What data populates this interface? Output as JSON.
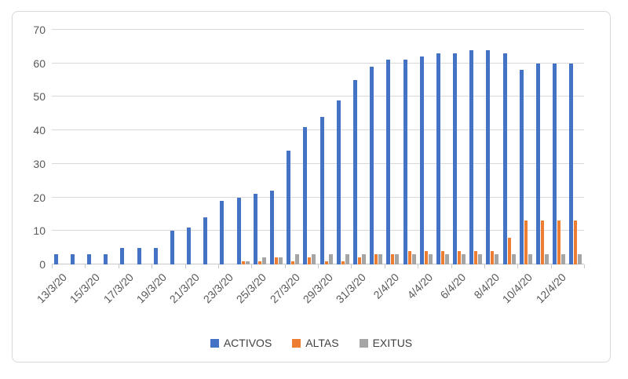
{
  "chart_data": {
    "type": "bar",
    "title": "",
    "xlabel": "",
    "ylabel": "",
    "ylim": [
      0,
      70
    ],
    "y_ticks": [
      0,
      10,
      20,
      30,
      40,
      50,
      60,
      70
    ],
    "grid": "horizontal",
    "legend_position": "bottom-center",
    "categories": [
      "13/3/20",
      "14/3/20",
      "15/3/20",
      "16/3/20",
      "17/3/20",
      "18/3/20",
      "19/3/20",
      "20/3/20",
      "21/3/20",
      "22/3/20",
      "23/3/20",
      "24/3/20",
      "25/3/20",
      "26/3/20",
      "27/3/20",
      "28/3/20",
      "29/3/20",
      "30/3/20",
      "31/3/20",
      "1/4/20",
      "2/4/20",
      "3/4/20",
      "4/4/20",
      "5/4/20",
      "6/4/20",
      "7/4/20",
      "8/4/20",
      "9/4/20",
      "10/4/20",
      "11/4/20",
      "12/4/20",
      "13/4/20"
    ],
    "x_tick_labels": [
      "13/3/20",
      "15/3/20",
      "17/3/20",
      "19/3/20",
      "21/3/20",
      "23/3/20",
      "25/3/20",
      "27/3/20",
      "29/3/20",
      "31/3/20",
      "2/4/20",
      "4/4/20",
      "6/4/20",
      "8/4/20",
      "10/4/20",
      "12/4/20"
    ],
    "x_tick_label_interval": 2,
    "series": [
      {
        "name": "ACTIVOS",
        "color": "#4472C4",
        "values": [
          3,
          3,
          3,
          3,
          5,
          5,
          5,
          10,
          11,
          14,
          19,
          20,
          21,
          22,
          34,
          41,
          44,
          49,
          55,
          59,
          61,
          61,
          62,
          63,
          63,
          64,
          64,
          63,
          58,
          60,
          60,
          60
        ]
      },
      {
        "name": "ALTAS",
        "color": "#ED7D31",
        "values": [
          0,
          0,
          0,
          0,
          0,
          0,
          0,
          0,
          0,
          0,
          0,
          1,
          1,
          2,
          1,
          2,
          1,
          1,
          2,
          3,
          3,
          4,
          4,
          4,
          4,
          4,
          4,
          8,
          13,
          13,
          13,
          13
        ]
      },
      {
        "name": "EXITUS",
        "color": "#A5A5A5",
        "values": [
          0,
          0,
          0,
          0,
          0,
          0,
          0,
          0,
          0,
          0,
          0,
          1,
          2,
          2,
          3,
          3,
          3,
          3,
          3,
          3,
          3,
          3,
          3,
          3,
          3,
          3,
          3,
          3,
          3,
          3,
          3,
          3
        ]
      }
    ]
  },
  "style_colors": {
    "gridline": "#D9D9D9",
    "axis_line": "#C8C8C8",
    "axis_text": "#595959",
    "legend_text": "#404040",
    "chart_border": "#D9D9D9",
    "background": "#FFFFFF"
  }
}
